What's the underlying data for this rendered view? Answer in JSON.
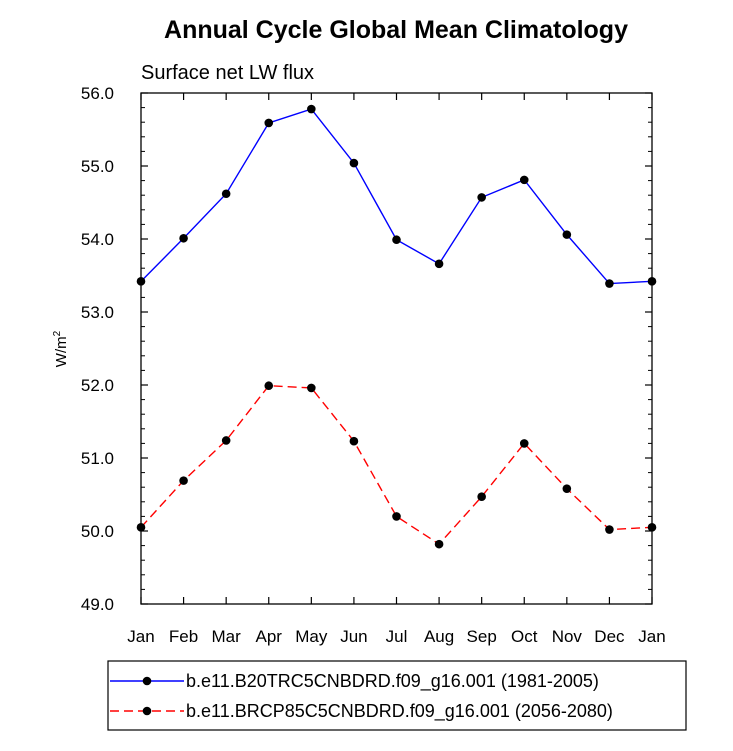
{
  "chart_data": {
    "type": "line",
    "title": "Annual Cycle Global Mean Climatology",
    "subtitle": "Surface net LW flux",
    "xlabel": "",
    "ylabel": "W/m",
    "ylabel_superscript": "2",
    "categories": [
      "Jan",
      "Feb",
      "Mar",
      "Apr",
      "May",
      "Jun",
      "Jul",
      "Aug",
      "Sep",
      "Oct",
      "Nov",
      "Dec",
      "Jan"
    ],
    "ylim": [
      49.0,
      56.0
    ],
    "yticks": [
      "49.0",
      "50.0",
      "51.0",
      "52.0",
      "53.0",
      "54.0",
      "55.0",
      "56.0"
    ],
    "grid": false,
    "legend_position": "bottom",
    "series": [
      {
        "name": "b.e11.B20TRC5CNBDRD.f09_g16.001 (1981-2005)",
        "color": "#0000ff",
        "dash": "solid",
        "values": [
          53.42,
          54.01,
          54.62,
          55.59,
          55.78,
          55.04,
          53.99,
          53.66,
          54.57,
          54.81,
          54.06,
          53.39,
          53.42
        ]
      },
      {
        "name": "b.e11.BRCP85C5CNBDRD.f09_g16.001 (2056-2080)",
        "color": "#ff0000",
        "dash": "dashed",
        "values": [
          50.05,
          50.69,
          51.24,
          51.99,
          51.96,
          51.23,
          50.2,
          49.82,
          50.47,
          51.2,
          50.58,
          50.02,
          50.05
        ]
      }
    ]
  }
}
